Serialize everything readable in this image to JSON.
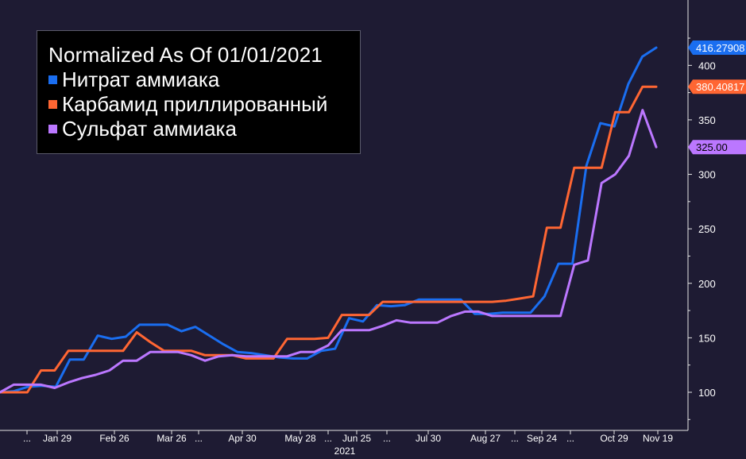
{
  "chart_data": {
    "type": "line",
    "title": "Normalized As Of 01/01/2021",
    "xlabel": "2021",
    "ylim": [
      65,
      460
    ],
    "y_ticks": [
      100,
      150,
      200,
      250,
      300,
      350,
      400
    ],
    "x_tick_labels": [
      "...",
      "Jan 29",
      "Feb 26",
      "Mar 26",
      "...",
      "Apr 30",
      "May 28",
      "...",
      "Jun 25",
      "...",
      "Jul 30",
      "Aug 27",
      "...",
      "Sep 24",
      "...",
      "Oct 29",
      "Nov 19"
    ],
    "legend_position": "top-left",
    "series": [
      {
        "name": "Нитрат аммиака",
        "color": "#1a6ef0",
        "last_value_label": "416.27908",
        "values": [
          100,
          101,
          105,
          106,
          105,
          130,
          130,
          152,
          149,
          151,
          162,
          162,
          162,
          156,
          160,
          152,
          144,
          137,
          136,
          134,
          132,
          131,
          131,
          138,
          140,
          168,
          165,
          180,
          179,
          180,
          185,
          185,
          185,
          185,
          172,
          172,
          173,
          173,
          173,
          188,
          218,
          218,
          308,
          347,
          344,
          383,
          408,
          416.27908
        ]
      },
      {
        "name": "Карбамид приллированный",
        "color": "#ff6633",
        "last_value_label": "380.40817",
        "values": [
          100,
          100,
          100,
          120,
          120,
          138,
          138,
          138,
          138,
          138,
          155,
          146,
          138,
          138,
          138,
          134,
          134,
          134,
          131,
          131,
          131,
          149,
          149,
          149,
          150,
          171,
          171,
          171,
          183,
          183,
          183,
          183,
          183,
          183,
          183,
          183,
          183,
          184,
          186,
          188,
          251,
          251,
          306,
          306,
          306,
          357,
          357,
          380.40817,
          380.40817
        ]
      },
      {
        "name": "Сульфат аммиака",
        "color": "#bb77ff",
        "last_value_label": "325.00",
        "values": [
          100,
          107,
          107,
          107,
          104,
          109,
          113,
          116,
          120,
          129,
          129,
          137,
          137,
          137,
          134,
          129,
          133,
          134,
          133,
          133,
          133,
          133,
          137,
          137,
          143,
          157,
          157,
          157,
          161,
          166,
          164,
          164,
          164,
          170,
          174,
          174,
          170,
          170,
          170,
          170,
          170,
          170,
          217,
          221,
          292,
          300,
          317,
          359,
          325
        ]
      }
    ]
  }
}
